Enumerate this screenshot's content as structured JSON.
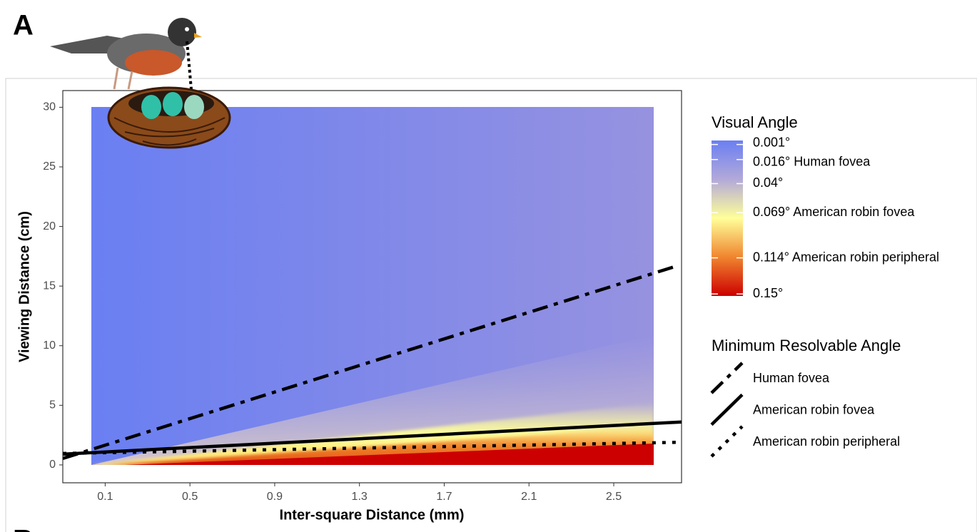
{
  "panel_labels": [
    "A",
    "B"
  ],
  "chart_data": {
    "type": "line",
    "x_label": "Inter-square Distance (mm)",
    "y_label": "Viewing Distance (cm)",
    "xlim": [
      -0.1,
      2.82
    ],
    "ylim": [
      -1.5,
      31.4
    ],
    "xticks": [
      0.1,
      0.5,
      0.9,
      1.3,
      1.7,
      2.1,
      2.5
    ],
    "yticks": [
      0,
      5,
      10,
      15,
      20,
      25,
      30
    ],
    "legend_title": "Minimum Resolvable Angle",
    "series": [
      {
        "name": "Human fovea",
        "color": "#000000",
        "dash": "dashdot",
        "x": [
          -0.1,
          2.8
        ],
        "values": [
          0.54,
          16.7
        ]
      },
      {
        "name": "American robin fovea",
        "color": "#000000",
        "dash": "solid",
        "x": [
          -0.1,
          2.82
        ],
        "values": [
          0.9,
          3.6
        ]
      },
      {
        "name": "American robin peripheral",
        "color": "#000000",
        "dash": "dotted",
        "x": [
          -0.1,
          2.82
        ],
        "values": [
          0.96,
          1.9
        ]
      }
    ],
    "colorbar": {
      "title": "Visual Angle",
      "lim": [
        -0.003,
        0.152
      ],
      "colors": [
        "#6a7ff2",
        "#b3a9d9",
        "#ffff9a",
        "#f0852e",
        "#cc0000"
      ],
      "ticks": [
        {
          "value": 0.001,
          "label": "0.001°"
        },
        {
          "value": 0.016,
          "label": "0.016° Human fovea"
        },
        {
          "value": 0.04,
          "label": "0.04°"
        },
        {
          "value": 0.069,
          "label": "0.069° American robin fovea"
        },
        {
          "value": 0.114,
          "label": "0.114° American robin peripheral"
        },
        {
          "value": 0.15,
          "label": "0.15°"
        }
      ]
    }
  }
}
